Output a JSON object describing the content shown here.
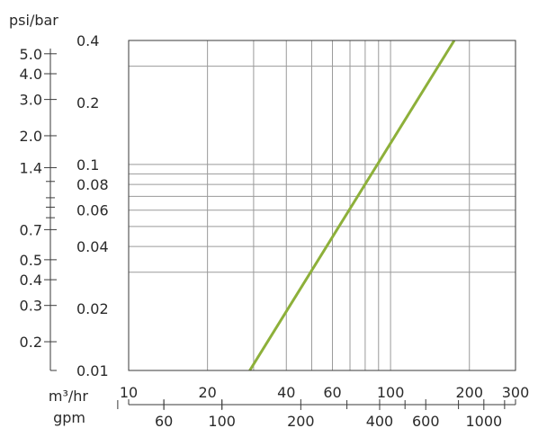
{
  "chart_data": {
    "type": "line",
    "title": "",
    "xlabel": "",
    "ylabel": "",
    "x_scale": "log",
    "y_scale": "log",
    "xlim": [
      10,
      300
    ],
    "ylim": [
      0.01,
      0.4
    ],
    "grid": true,
    "legend": "none",
    "x_unit_primary": "m³/hr",
    "x_unit_secondary": "gpm",
    "y_unit_secondary": "psi/bar",
    "x_ticks_m3hr": [
      {
        "value": 10,
        "label": "10"
      },
      {
        "value": 20,
        "label": "20"
      },
      {
        "value": 40,
        "label": "40"
      },
      {
        "value": 60,
        "label": "60"
      },
      {
        "value": 100,
        "label": "100"
      },
      {
        "value": 200,
        "label": "200"
      },
      {
        "value": 300,
        "label": "300"
      }
    ],
    "x_gridlines": [
      20,
      30,
      40,
      50,
      60,
      70,
      80,
      90,
      100,
      200
    ],
    "x_ticks_gpm": [
      {
        "value": 60,
        "label": "60"
      },
      {
        "value": 100,
        "label": "100"
      },
      {
        "value": 200,
        "label": "200"
      },
      {
        "value": 400,
        "label": "400"
      },
      {
        "value": 600,
        "label": "600"
      },
      {
        "value": 1000,
        "label": "1000"
      }
    ],
    "gpm_minor_ticks": [
      40,
      60,
      100,
      300,
      500,
      800,
      1200
    ],
    "y_ticks_bar": [
      {
        "value": 0.01,
        "label": "0.01"
      },
      {
        "value": 0.02,
        "label": "0.02"
      },
      {
        "value": 0.04,
        "label": "0.04"
      },
      {
        "value": 0.06,
        "label": "0.06"
      },
      {
        "value": 0.08,
        "label": "0.08"
      },
      {
        "value": 0.1,
        "label": "0.1"
      },
      {
        "value": 0.2,
        "label": "0.2"
      },
      {
        "value": 0.4,
        "label": "0.4"
      }
    ],
    "y_gridlines": [
      0.03,
      0.04,
      0.05,
      0.06,
      0.07,
      0.08,
      0.09,
      0.1,
      0.3
    ],
    "y_ticks_psi": [
      {
        "value": 0.2,
        "label": "0.2"
      },
      {
        "value": 0.3,
        "label": "0.3"
      },
      {
        "value": 0.4,
        "label": "0.4"
      },
      {
        "value": 0.5,
        "label": "0.5"
      },
      {
        "value": 0.7,
        "label": "0.7"
      },
      {
        "value": 1.4,
        "label": "1.4"
      },
      {
        "value": 2.0,
        "label": "2.0"
      },
      {
        "value": 3.0,
        "label": "3.0"
      },
      {
        "value": 4.0,
        "label": "4.0"
      },
      {
        "value": 5.0,
        "label": "5.0"
      }
    ],
    "psi_minor_ticks": [
      0.8,
      0.9,
      1.0,
      1.2
    ],
    "series": [
      {
        "x": [
          29,
          175
        ],
        "y": [
          0.01,
          0.4
        ]
      }
    ],
    "series_color": "#8db03a"
  }
}
